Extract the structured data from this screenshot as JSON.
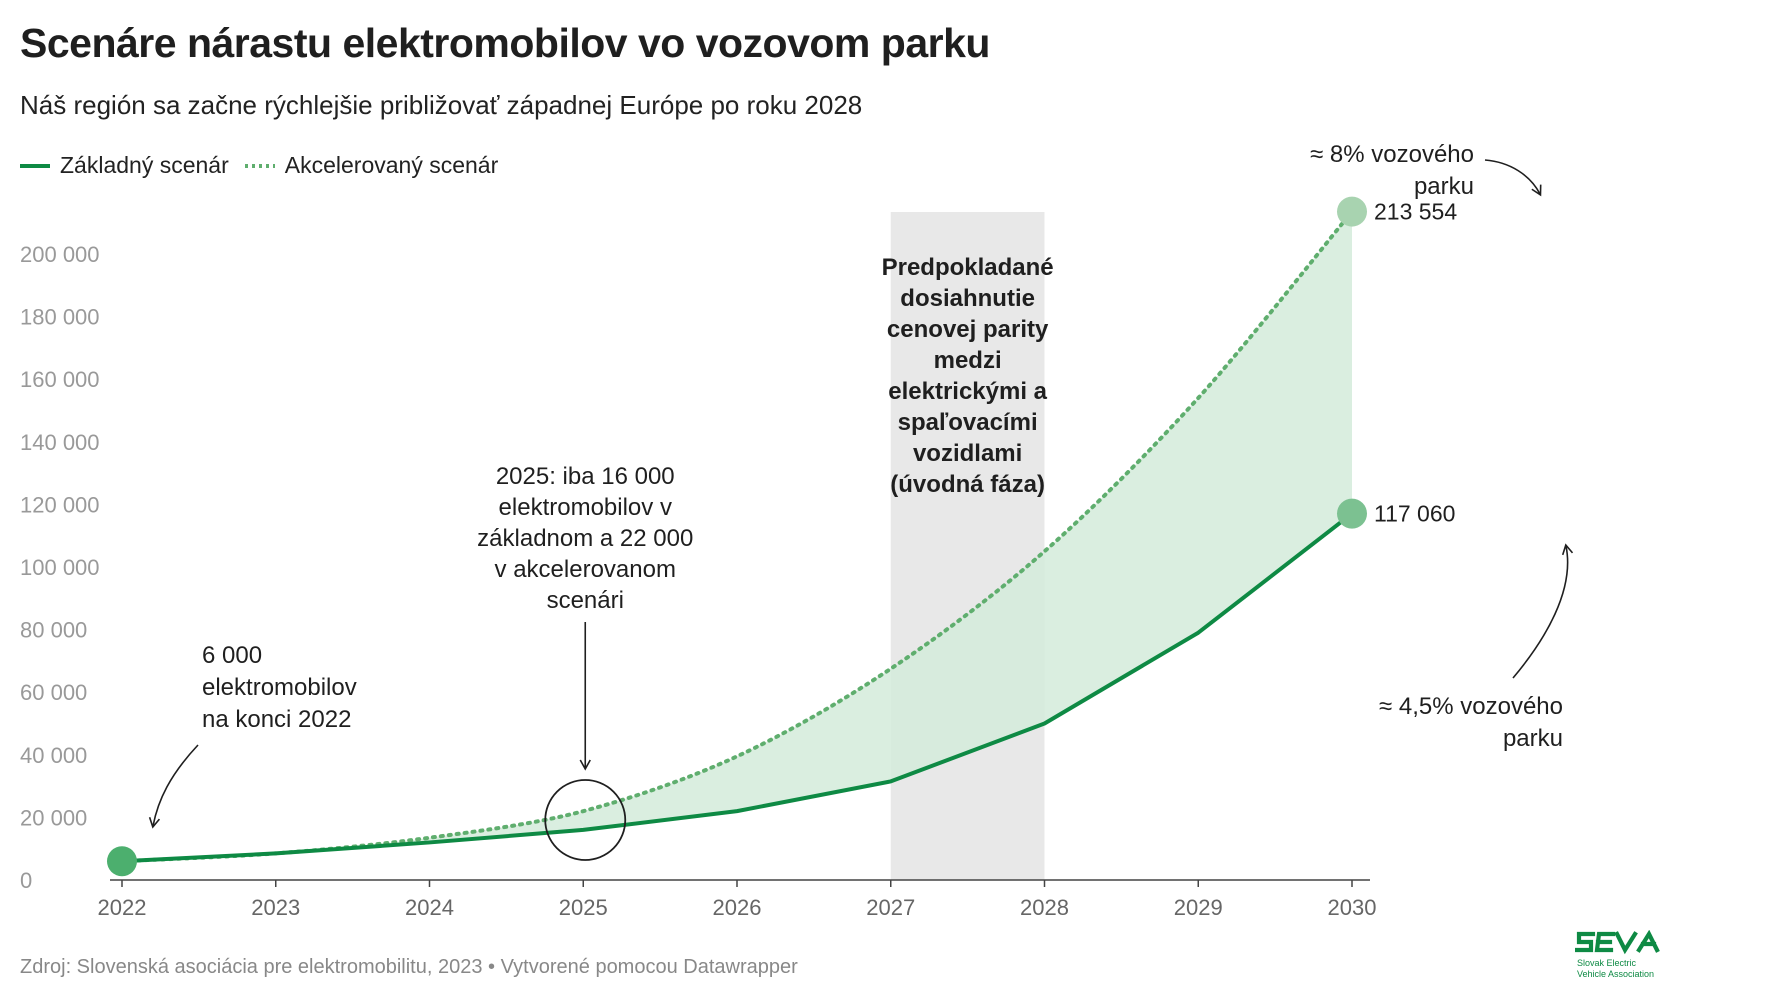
{
  "title": "Scenáre nárastu elektromobilov vo vozovom parku",
  "subtitle": "Náš región sa začne rýchlejšie približovať západnej Európe po roku 2028",
  "colors": {
    "base": "#0e8a44",
    "accel": "#5fae6e",
    "fill": "#d4ebda",
    "band": "#e8e8e8",
    "dot": "#4caf6e"
  },
  "legend": [
    {
      "label": "Základný scenár",
      "style": "solid"
    },
    {
      "label": "Akcelerovaný scenár",
      "style": "dotted"
    }
  ],
  "chart_data": {
    "type": "area",
    "x": [
      2022,
      2023,
      2024,
      2025,
      2026,
      2027,
      2028,
      2029,
      2030
    ],
    "x_tick_labels": [
      "2022",
      "2023",
      "2024",
      "2025",
      "2026",
      "2027",
      "2028",
      "2029",
      "2030"
    ],
    "series": [
      {
        "name": "Základný scenár",
        "values": [
          6000,
          8500,
          12000,
          16000,
          22000,
          31500,
          50000,
          79000,
          117060
        ]
      },
      {
        "name": "Akcelerovaný scenár",
        "values": [
          6000,
          8500,
          13500,
          22000,
          39500,
          67500,
          105000,
          154000,
          213554
        ]
      }
    ],
    "ylim": [
      0,
      200000
    ],
    "y_ticks": [
      0,
      20000,
      40000,
      60000,
      80000,
      100000,
      120000,
      140000,
      160000,
      180000,
      200000
    ],
    "y_tick_labels": [
      "0",
      "20 000",
      "40 000",
      "60 000",
      "80 000",
      "100 000",
      "120 000",
      "140 000",
      "160 000",
      "180 000",
      "200 000"
    ],
    "grid": false,
    "legend_position": "top-left",
    "highlight_range": {
      "x": [
        2027,
        2028
      ],
      "label_lines": [
        "Predpokladané",
        "dosiahnutie",
        "cenovej parity",
        "medzi",
        "elektrickými a",
        "spaľovacími",
        "vozidlami",
        "(úvodná fáza)"
      ]
    },
    "end_labels": {
      "accel": "213 554",
      "base": "117 060"
    },
    "annotations": {
      "start": [
        "6 000",
        "elektromobilov",
        "na konci 2022"
      ],
      "mid": [
        "2025: iba 16 000",
        "elektromobilov v",
        "základnom a 22 000",
        "v akcelerovanom",
        "scenári"
      ],
      "top": [
        "≈ 8% vozového",
        "parku"
      ],
      "bottom": [
        "≈ 4,5% vozového",
        "parku"
      ]
    }
  },
  "footer": {
    "source": "Zdroj: Slovenská asociácia pre elektromobilitu, 2023 • Vytvorené pomocou Datawrapper"
  },
  "logo": {
    "brand": "SEVA",
    "line1": "Slovak Electric",
    "line2": "Vehicle Association"
  }
}
